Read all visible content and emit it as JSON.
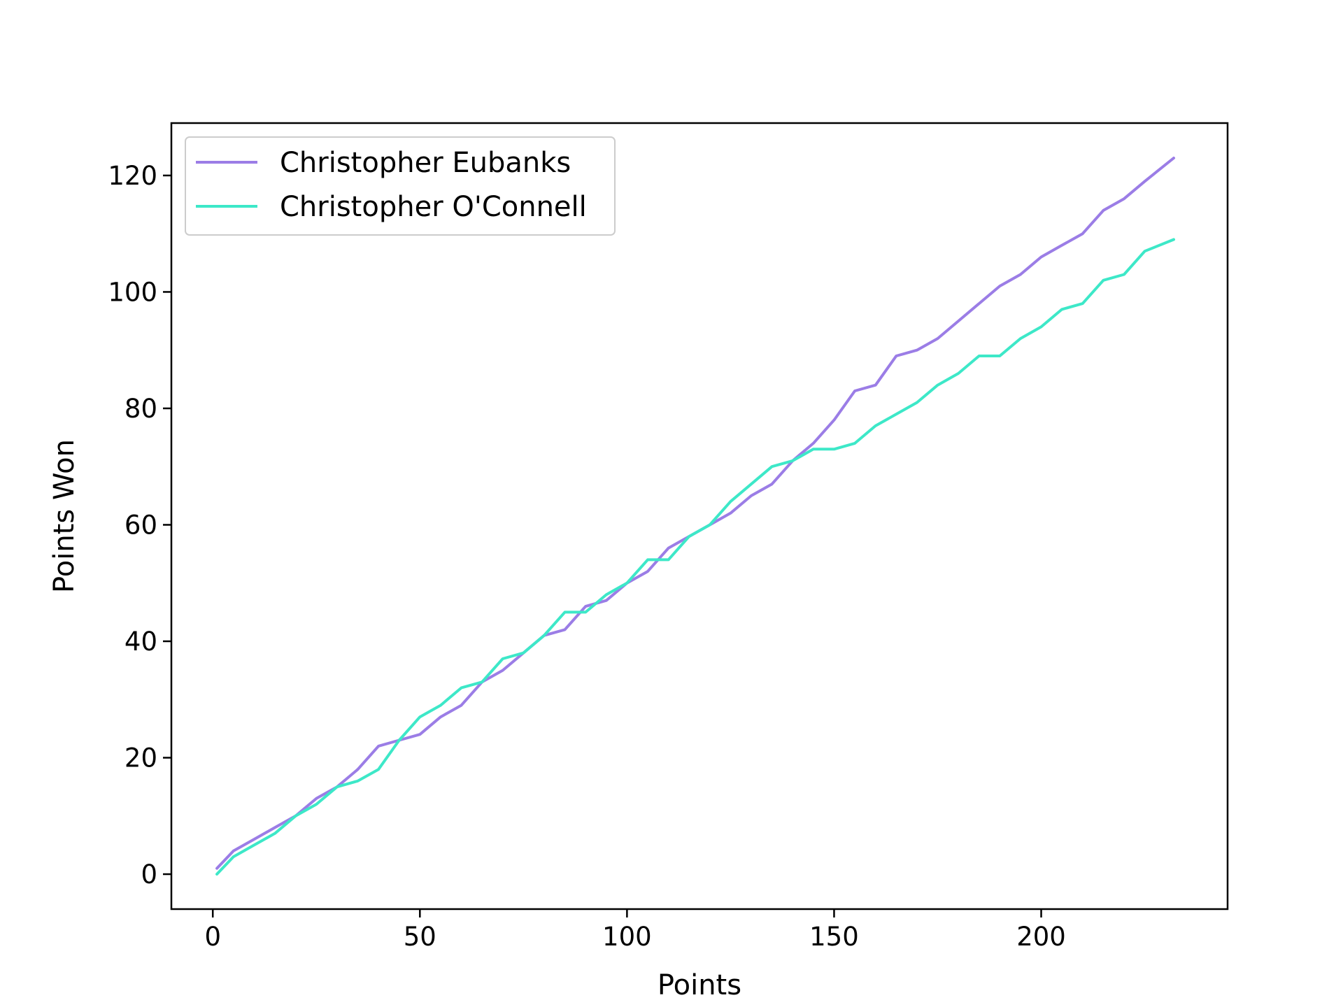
{
  "chart_data": {
    "type": "line",
    "title": "",
    "xlabel": "Points",
    "ylabel": "Points Won",
    "xlim": [
      -10,
      245
    ],
    "ylim": [
      -6,
      129
    ],
    "xticks": [
      0,
      50,
      100,
      150,
      200
    ],
    "yticks": [
      0,
      20,
      40,
      60,
      80,
      100,
      120
    ],
    "legend_position": "upper-left",
    "grid": false,
    "series": [
      {
        "name": "Christopher Eubanks",
        "color": "#9b7de6",
        "x": [
          1,
          5,
          10,
          15,
          20,
          25,
          30,
          35,
          40,
          45,
          50,
          55,
          60,
          65,
          70,
          75,
          80,
          85,
          90,
          95,
          100,
          105,
          110,
          115,
          120,
          125,
          130,
          135,
          140,
          145,
          150,
          155,
          160,
          165,
          170,
          175,
          180,
          185,
          190,
          195,
          200,
          205,
          210,
          215,
          220,
          225,
          232
        ],
        "y": [
          1,
          4,
          6,
          8,
          10,
          13,
          15,
          18,
          22,
          23,
          24,
          27,
          29,
          33,
          35,
          38,
          41,
          42,
          46,
          47,
          50,
          52,
          56,
          58,
          60,
          62,
          65,
          67,
          71,
          74,
          78,
          83,
          84,
          89,
          90,
          92,
          95,
          98,
          101,
          103,
          106,
          108,
          110,
          114,
          116,
          119,
          123
        ]
      },
      {
        "name": "Christopher O'Connell",
        "color": "#3de8c8",
        "x": [
          1,
          5,
          10,
          15,
          20,
          25,
          30,
          35,
          40,
          45,
          50,
          55,
          60,
          65,
          70,
          75,
          80,
          85,
          90,
          95,
          100,
          105,
          110,
          115,
          120,
          125,
          130,
          135,
          140,
          145,
          150,
          155,
          160,
          165,
          170,
          175,
          180,
          185,
          190,
          195,
          200,
          205,
          210,
          215,
          220,
          225,
          232
        ],
        "y": [
          0,
          3,
          5,
          7,
          10,
          12,
          15,
          16,
          18,
          23,
          27,
          29,
          32,
          33,
          37,
          38,
          41,
          45,
          45,
          48,
          50,
          54,
          54,
          58,
          60,
          64,
          67,
          70,
          71,
          73,
          73,
          74,
          77,
          79,
          81,
          84,
          86,
          89,
          89,
          92,
          94,
          97,
          98,
          102,
          103,
          107,
          109
        ]
      }
    ]
  }
}
